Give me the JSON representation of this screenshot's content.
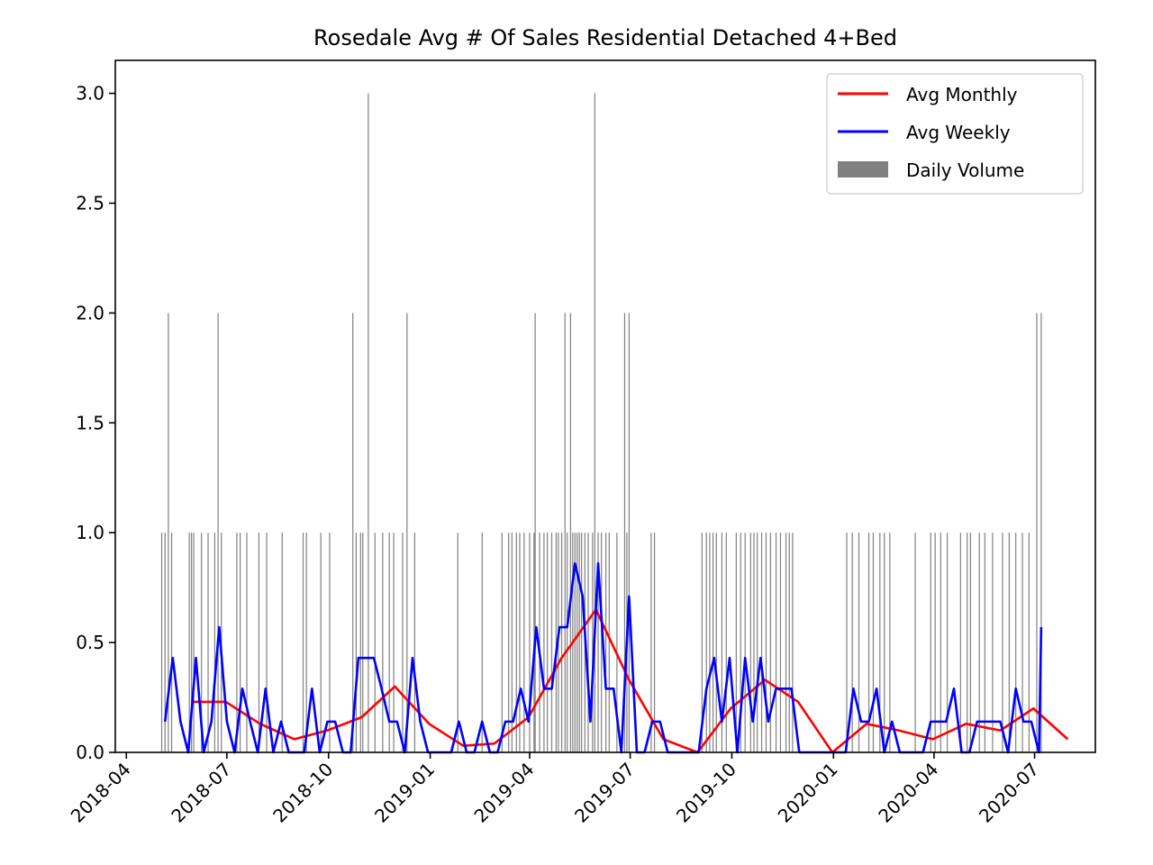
{
  "chart_data": {
    "type": "line",
    "title": "Rosedale Avg # Of Sales Residential Detached 4+Bed",
    "xlabel": "",
    "ylabel": "",
    "xlim": [
      "2018-03-22",
      "2020-08-25"
    ],
    "ylim": [
      0,
      3.15
    ],
    "grid": false,
    "legend_position": "top-right",
    "y_ticks": [
      "0.0",
      "0.5",
      "1.0",
      "1.5",
      "2.0",
      "2.5",
      "3.0"
    ],
    "x_ticks": [
      "2018-04",
      "2018-07",
      "2018-10",
      "2019-01",
      "2019-04",
      "2019-07",
      "2019-10",
      "2020-01",
      "2020-04",
      "2020-07"
    ],
    "series": [
      {
        "name": "Avg Monthly",
        "kind": "line",
        "color": "#ff0000",
        "points": [
          [
            "2018-05-31",
            0.23
          ],
          [
            "2018-06-30",
            0.23
          ],
          [
            "2018-07-31",
            0.13
          ],
          [
            "2018-08-31",
            0.06
          ],
          [
            "2018-09-30",
            0.1
          ],
          [
            "2018-10-31",
            0.16
          ],
          [
            "2018-11-30",
            0.3
          ],
          [
            "2018-12-31",
            0.13
          ],
          [
            "2019-01-31",
            0.03
          ],
          [
            "2019-02-28",
            0.04
          ],
          [
            "2019-03-31",
            0.16
          ],
          [
            "2019-04-30",
            0.43
          ],
          [
            "2019-05-31",
            0.65
          ],
          [
            "2019-06-30",
            0.33
          ],
          [
            "2019-07-31",
            0.06
          ],
          [
            "2019-08-31",
            0.0
          ],
          [
            "2019-09-30",
            0.2
          ],
          [
            "2019-10-31",
            0.33
          ],
          [
            "2019-11-30",
            0.23
          ],
          [
            "2019-12-31",
            0.0
          ],
          [
            "2020-01-31",
            0.13
          ],
          [
            "2020-02-29",
            0.1
          ],
          [
            "2020-03-31",
            0.06
          ],
          [
            "2020-04-30",
            0.13
          ],
          [
            "2020-05-31",
            0.1
          ],
          [
            "2020-06-30",
            0.2
          ],
          [
            "2020-07-31",
            0.06
          ]
        ]
      },
      {
        "name": "Avg Weekly",
        "kind": "line",
        "color": "#0000ff",
        "points": [
          [
            "2018-05-06",
            0.14
          ],
          [
            "2018-05-13",
            0.43
          ],
          [
            "2018-05-20",
            0.14
          ],
          [
            "2018-05-27",
            0.0
          ],
          [
            "2018-06-03",
            0.43
          ],
          [
            "2018-06-10",
            0.0
          ],
          [
            "2018-06-17",
            0.14
          ],
          [
            "2018-06-24",
            0.57
          ],
          [
            "2018-07-01",
            0.14
          ],
          [
            "2018-07-08",
            0.0
          ],
          [
            "2018-07-15",
            0.29
          ],
          [
            "2018-07-22",
            0.14
          ],
          [
            "2018-07-29",
            0.0
          ],
          [
            "2018-08-05",
            0.29
          ],
          [
            "2018-08-12",
            0.0
          ],
          [
            "2018-08-19",
            0.14
          ],
          [
            "2018-08-26",
            0.0
          ],
          [
            "2018-09-02",
            0.0
          ],
          [
            "2018-09-09",
            0.0
          ],
          [
            "2018-09-16",
            0.29
          ],
          [
            "2018-09-23",
            0.0
          ],
          [
            "2018-09-30",
            0.14
          ],
          [
            "2018-10-07",
            0.14
          ],
          [
            "2018-10-14",
            0.0
          ],
          [
            "2018-10-21",
            0.0
          ],
          [
            "2018-10-28",
            0.43
          ],
          [
            "2018-11-04",
            0.43
          ],
          [
            "2018-11-11",
            0.43
          ],
          [
            "2018-11-18",
            0.29
          ],
          [
            "2018-11-25",
            0.14
          ],
          [
            "2018-12-02",
            0.14
          ],
          [
            "2018-12-09",
            0.0
          ],
          [
            "2018-12-16",
            0.43
          ],
          [
            "2018-12-23",
            0.14
          ],
          [
            "2018-12-30",
            0.0
          ],
          [
            "2019-01-06",
            0.0
          ],
          [
            "2019-01-13",
            0.0
          ],
          [
            "2019-01-20",
            0.0
          ],
          [
            "2019-01-27",
            0.14
          ],
          [
            "2019-02-03",
            0.0
          ],
          [
            "2019-02-10",
            0.0
          ],
          [
            "2019-02-17",
            0.14
          ],
          [
            "2019-02-24",
            0.0
          ],
          [
            "2019-03-03",
            0.0
          ],
          [
            "2019-03-10",
            0.14
          ],
          [
            "2019-03-17",
            0.14
          ],
          [
            "2019-03-24",
            0.29
          ],
          [
            "2019-03-31",
            0.14
          ],
          [
            "2019-04-07",
            0.57
          ],
          [
            "2019-04-14",
            0.29
          ],
          [
            "2019-04-21",
            0.29
          ],
          [
            "2019-04-28",
            0.57
          ],
          [
            "2019-05-05",
            0.57
          ],
          [
            "2019-05-12",
            0.86
          ],
          [
            "2019-05-19",
            0.71
          ],
          [
            "2019-05-26",
            0.14
          ],
          [
            "2019-06-02",
            0.86
          ],
          [
            "2019-06-09",
            0.29
          ],
          [
            "2019-06-16",
            0.29
          ],
          [
            "2019-06-23",
            0.0
          ],
          [
            "2019-06-30",
            0.71
          ],
          [
            "2019-07-07",
            0.0
          ],
          [
            "2019-07-14",
            0.0
          ],
          [
            "2019-07-21",
            0.14
          ],
          [
            "2019-07-28",
            0.14
          ],
          [
            "2019-08-04",
            0.0
          ],
          [
            "2019-08-11",
            0.0
          ],
          [
            "2019-08-18",
            0.0
          ],
          [
            "2019-08-25",
            0.0
          ],
          [
            "2019-09-01",
            0.0
          ],
          [
            "2019-09-08",
            0.29
          ],
          [
            "2019-09-15",
            0.43
          ],
          [
            "2019-09-22",
            0.14
          ],
          [
            "2019-09-29",
            0.43
          ],
          [
            "2019-10-06",
            0.0
          ],
          [
            "2019-10-13",
            0.43
          ],
          [
            "2019-10-20",
            0.14
          ],
          [
            "2019-10-27",
            0.43
          ],
          [
            "2019-11-03",
            0.14
          ],
          [
            "2019-11-10",
            0.29
          ],
          [
            "2019-11-17",
            0.29
          ],
          [
            "2019-11-24",
            0.29
          ],
          [
            "2019-12-01",
            0.0
          ],
          [
            "2019-12-08",
            0.0
          ],
          [
            "2019-12-15",
            0.0
          ],
          [
            "2019-12-22",
            0.0
          ],
          [
            "2019-12-29",
            0.0
          ],
          [
            "2020-01-05",
            0.0
          ],
          [
            "2020-01-12",
            0.0
          ],
          [
            "2020-01-19",
            0.29
          ],
          [
            "2020-01-26",
            0.14
          ],
          [
            "2020-02-02",
            0.14
          ],
          [
            "2020-02-09",
            0.29
          ],
          [
            "2020-02-16",
            0.0
          ],
          [
            "2020-02-23",
            0.14
          ],
          [
            "2020-03-01",
            0.0
          ],
          [
            "2020-03-08",
            0.0
          ],
          [
            "2020-03-15",
            0.0
          ],
          [
            "2020-03-22",
            0.0
          ],
          [
            "2020-03-29",
            0.14
          ],
          [
            "2020-04-05",
            0.14
          ],
          [
            "2020-04-12",
            0.14
          ],
          [
            "2020-04-19",
            0.29
          ],
          [
            "2020-04-26",
            0.0
          ],
          [
            "2020-05-03",
            0.0
          ],
          [
            "2020-05-10",
            0.14
          ],
          [
            "2020-05-17",
            0.14
          ],
          [
            "2020-05-24",
            0.14
          ],
          [
            "2020-05-31",
            0.14
          ],
          [
            "2020-06-07",
            0.0
          ],
          [
            "2020-06-14",
            0.29
          ],
          [
            "2020-06-21",
            0.14
          ],
          [
            "2020-06-28",
            0.14
          ],
          [
            "2020-07-05",
            0.0
          ],
          [
            "2020-07-07",
            0.57
          ]
        ]
      },
      {
        "name": "Daily Volume",
        "kind": "bar",
        "color": "#808080",
        "points": [
          [
            "2018-05-03",
            1
          ],
          [
            "2018-05-06",
            1
          ],
          [
            "2018-05-09",
            2
          ],
          [
            "2018-05-12",
            1
          ],
          [
            "2018-05-28",
            1
          ],
          [
            "2018-05-30",
            1
          ],
          [
            "2018-06-01",
            1
          ],
          [
            "2018-06-08",
            1
          ],
          [
            "2018-06-14",
            1
          ],
          [
            "2018-06-20",
            1
          ],
          [
            "2018-06-23",
            2
          ],
          [
            "2018-06-26",
            1
          ],
          [
            "2018-07-10",
            1
          ],
          [
            "2018-07-13",
            1
          ],
          [
            "2018-07-19",
            1
          ],
          [
            "2018-07-30",
            1
          ],
          [
            "2018-08-06",
            1
          ],
          [
            "2018-08-20",
            1
          ],
          [
            "2018-09-08",
            1
          ],
          [
            "2018-09-11",
            1
          ],
          [
            "2018-09-24",
            1
          ],
          [
            "2018-10-02",
            1
          ],
          [
            "2018-10-23",
            2
          ],
          [
            "2018-10-26",
            1
          ],
          [
            "2018-10-30",
            1
          ],
          [
            "2018-11-01",
            1
          ],
          [
            "2018-11-06",
            3
          ],
          [
            "2018-11-12",
            1
          ],
          [
            "2018-11-19",
            1
          ],
          [
            "2018-11-25",
            1
          ],
          [
            "2018-11-29",
            1
          ],
          [
            "2018-12-07",
            1
          ],
          [
            "2018-12-11",
            2
          ],
          [
            "2018-12-18",
            1
          ],
          [
            "2019-01-26",
            1
          ],
          [
            "2019-02-17",
            1
          ],
          [
            "2019-03-07",
            1
          ],
          [
            "2019-03-13",
            1
          ],
          [
            "2019-03-16",
            1
          ],
          [
            "2019-03-20",
            1
          ],
          [
            "2019-03-23",
            1
          ],
          [
            "2019-03-27",
            1
          ],
          [
            "2019-04-01",
            1
          ],
          [
            "2019-04-05",
            1
          ],
          [
            "2019-04-06",
            2
          ],
          [
            "2019-04-10",
            1
          ],
          [
            "2019-04-14",
            1
          ],
          [
            "2019-04-17",
            1
          ],
          [
            "2019-04-21",
            1
          ],
          [
            "2019-04-25",
            1
          ],
          [
            "2019-04-27",
            1
          ],
          [
            "2019-04-30",
            1
          ],
          [
            "2019-05-03",
            2
          ],
          [
            "2019-05-05",
            1
          ],
          [
            "2019-05-08",
            2
          ],
          [
            "2019-05-10",
            1
          ],
          [
            "2019-05-12",
            1
          ],
          [
            "2019-05-14",
            1
          ],
          [
            "2019-05-16",
            1
          ],
          [
            "2019-05-18",
            1
          ],
          [
            "2019-05-21",
            1
          ],
          [
            "2019-05-24",
            1
          ],
          [
            "2019-05-28",
            1
          ],
          [
            "2019-05-30",
            3
          ],
          [
            "2019-06-02",
            1
          ],
          [
            "2019-06-05",
            1
          ],
          [
            "2019-06-09",
            1
          ],
          [
            "2019-06-12",
            1
          ],
          [
            "2019-06-19",
            1
          ],
          [
            "2019-06-26",
            2
          ],
          [
            "2019-06-28",
            1
          ],
          [
            "2019-06-30",
            2
          ],
          [
            "2019-07-20",
            1
          ],
          [
            "2019-07-23",
            1
          ],
          [
            "2019-09-04",
            1
          ],
          [
            "2019-09-08",
            1
          ],
          [
            "2019-09-11",
            1
          ],
          [
            "2019-09-14",
            1
          ],
          [
            "2019-09-17",
            1
          ],
          [
            "2019-09-22",
            1
          ],
          [
            "2019-09-26",
            1
          ],
          [
            "2019-10-05",
            1
          ],
          [
            "2019-10-09",
            1
          ],
          [
            "2019-10-13",
            1
          ],
          [
            "2019-10-18",
            1
          ],
          [
            "2019-10-21",
            1
          ],
          [
            "2019-10-24",
            1
          ],
          [
            "2019-10-28",
            1
          ],
          [
            "2019-11-01",
            1
          ],
          [
            "2019-11-05",
            1
          ],
          [
            "2019-11-10",
            1
          ],
          [
            "2019-11-14",
            1
          ],
          [
            "2019-11-19",
            1
          ],
          [
            "2019-11-22",
            1
          ],
          [
            "2019-11-25",
            1
          ],
          [
            "2020-01-13",
            1
          ],
          [
            "2020-01-18",
            1
          ],
          [
            "2020-01-24",
            1
          ],
          [
            "2020-02-02",
            1
          ],
          [
            "2020-02-06",
            1
          ],
          [
            "2020-02-12",
            1
          ],
          [
            "2020-02-16",
            1
          ],
          [
            "2020-02-21",
            1
          ],
          [
            "2020-03-15",
            1
          ],
          [
            "2020-03-29",
            1
          ],
          [
            "2020-04-02",
            1
          ],
          [
            "2020-04-07",
            1
          ],
          [
            "2020-04-13",
            1
          ],
          [
            "2020-04-25",
            1
          ],
          [
            "2020-05-01",
            1
          ],
          [
            "2020-05-04",
            1
          ],
          [
            "2020-05-12",
            1
          ],
          [
            "2020-05-17",
            1
          ],
          [
            "2020-05-24",
            1
          ],
          [
            "2020-06-02",
            1
          ],
          [
            "2020-06-08",
            1
          ],
          [
            "2020-06-14",
            1
          ],
          [
            "2020-06-20",
            1
          ],
          [
            "2020-06-26",
            1
          ],
          [
            "2020-07-03",
            2
          ],
          [
            "2020-07-07",
            2
          ]
        ]
      }
    ]
  }
}
